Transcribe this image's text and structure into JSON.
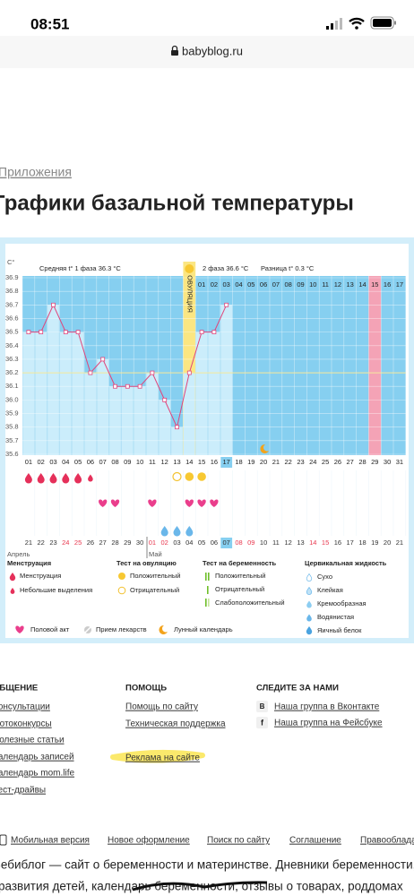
{
  "status_bar": {
    "time": "08:51"
  },
  "address_bar": {
    "url": "babyblog.ru"
  },
  "breadcrumb": "Приложения",
  "title": "Графики базальной температуры",
  "chart_data": {
    "type": "line",
    "y_unit": "С°",
    "phase1": "Средняя t° 1 фаза 36.3 °С",
    "phase2": "2 фаза 36.6 °С",
    "difference": "Разница t° 0.3 °С",
    "ovulation_label": "ОВУЛЯЦИЯ",
    "categories": [
      "01",
      "02",
      "03",
      "04",
      "05",
      "06",
      "07",
      "08",
      "09",
      "10",
      "11",
      "12",
      "13",
      "14",
      "15",
      "16",
      "17",
      "18",
      "19",
      "20",
      "21",
      "22",
      "23",
      "24",
      "25",
      "26",
      "27",
      "28",
      "29",
      "30",
      "31"
    ],
    "phase2_days": [
      "01",
      "02",
      "03",
      "04",
      "05",
      "06",
      "07",
      "08",
      "09",
      "10",
      "11",
      "12",
      "13",
      "14",
      "15",
      "16",
      "17"
    ],
    "dates": [
      "21",
      "22",
      "23",
      "24",
      "25",
      "26",
      "27",
      "28",
      "29",
      "30",
      "01",
      "02",
      "03",
      "04",
      "05",
      "06",
      "07",
      "08",
      "09",
      "10",
      "11",
      "12",
      "13",
      "14",
      "15",
      "16",
      "17",
      "18",
      "19",
      "20",
      "21"
    ],
    "date_colors": [
      "#333",
      "#333",
      "#333",
      "#e8384f",
      "#e8384f",
      "#333",
      "#333",
      "#333",
      "#333",
      "#333",
      "#e8384f",
      "#e8384f",
      "#333",
      "#333",
      "#333",
      "#333",
      "#333",
      "#e8384f",
      "#e8384f",
      "#333",
      "#333",
      "#333",
      "#333",
      "#e8384f",
      "#e8384f",
      "#333",
      "#333",
      "#333",
      "#333",
      "#333",
      "#333"
    ],
    "months": [
      "Апрель",
      "Май"
    ],
    "series": [
      {
        "color": "#e0457b",
        "values": [
          36.5,
          36.5,
          36.7,
          36.5,
          36.5,
          36.2,
          36.3,
          36.1,
          36.1,
          36.1,
          36.2,
          36.0,
          35.8,
          36.2,
          36.5,
          36.5,
          36.7,
          null,
          null,
          null,
          null,
          null,
          null,
          null,
          null,
          null,
          null,
          null,
          null,
          null,
          null
        ]
      }
    ],
    "coverline": 36.2,
    "ylim": [
      35.6,
      36.9
    ],
    "yticks": [
      36.9,
      36.8,
      36.7,
      36.6,
      36.5,
      36.4,
      36.3,
      36.2,
      36.1,
      {
        "value": 36.0,
        "label": "36.0"
      },
      35.9,
      35.8,
      35.7,
      35.6
    ],
    "ovulation_day": "14",
    "today": "17",
    "pink_phase2_day": "15"
  },
  "legend": {
    "menstruation": {
      "title": "Менструация",
      "items": [
        "Менструация",
        "Небольшие выделения"
      ]
    },
    "ovulation_test": {
      "title": "Тест на овуляцию",
      "items": [
        "Положительный",
        "Отрицательный"
      ]
    },
    "pregnancy_test": {
      "title": "Тест на беременность",
      "items": [
        "Положительный",
        "Отрицательный",
        "Слабоположительный"
      ]
    },
    "cervical": {
      "title": "Цервикальная жидкость",
      "items": [
        "Сухо",
        "Клейкая",
        "Кремообразная",
        "Водянистая",
        "Яичный белок"
      ]
    },
    "other": [
      "Половой акт",
      "Прием лекарств",
      "Лунный календарь"
    ]
  },
  "footer": {
    "communication": {
      "title": "ОБЩЕНИЕ",
      "links": [
        "Консультации",
        "Фотоконкурсы",
        "Полезные статьи",
        "Календарь записей",
        "Календарь mom.life",
        "Тест-драйвы"
      ]
    },
    "help": {
      "title": "ПОМОЩЬ",
      "links": [
        "Помощь по сайту",
        "Техническая поддержка",
        "Реклама на сайте"
      ]
    },
    "follow": {
      "title": "СЛЕДИТЕ ЗА НАМИ",
      "links": [
        {
          "icon": "В",
          "text": "Наша группа в Вконтакте"
        },
        {
          "icon": "f",
          "text": "Наша группа на Фейсбуке"
        }
      ]
    },
    "bottom_links": [
      "Мобильная версия",
      "Новое оформление",
      "Поиск по сайту",
      "Соглашение",
      "Правообладателям"
    ],
    "description": [
      "Бебиблог — сайт о беременности и материнстве. Дневники беременности,",
      "развития детей, календарь беременности, отзывы о товарах, роддомах"
    ]
  }
}
